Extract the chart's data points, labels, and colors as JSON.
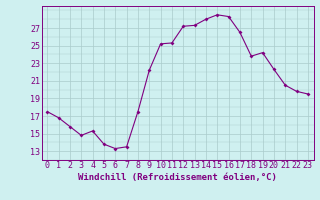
{
  "x": [
    0,
    1,
    2,
    3,
    4,
    5,
    6,
    7,
    8,
    9,
    10,
    11,
    12,
    13,
    14,
    15,
    16,
    17,
    18,
    19,
    20,
    21,
    22,
    23
  ],
  "y": [
    17.5,
    16.8,
    15.8,
    14.8,
    15.3,
    13.8,
    13.3,
    13.5,
    17.5,
    22.2,
    25.2,
    25.3,
    27.2,
    27.3,
    28.0,
    28.5,
    28.3,
    26.5,
    23.8,
    24.2,
    22.3,
    20.5,
    19.8,
    19.5
  ],
  "line_color": "#800080",
  "marker": "D",
  "marker_size": 2.0,
  "bg_color": "#cff0f0",
  "grid_color": "#aacccc",
  "xlabel": "Windchill (Refroidissement éolien,°C)",
  "xlabel_fontsize": 6.5,
  "ytick_labels": [
    "13",
    "15",
    "17",
    "19",
    "21",
    "23",
    "25",
    "27"
  ],
  "ytick_values": [
    13,
    15,
    17,
    19,
    21,
    23,
    25,
    27
  ],
  "ylim": [
    12.0,
    29.5
  ],
  "xlim": [
    -0.5,
    23.5
  ],
  "xtick_labels": [
    "0",
    "1",
    "2",
    "3",
    "4",
    "5",
    "6",
    "7",
    "8",
    "9",
    "10",
    "11",
    "12",
    "13",
    "14",
    "15",
    "16",
    "17",
    "18",
    "19",
    "20",
    "21",
    "22",
    "23"
  ],
  "tick_fontsize": 6.0
}
